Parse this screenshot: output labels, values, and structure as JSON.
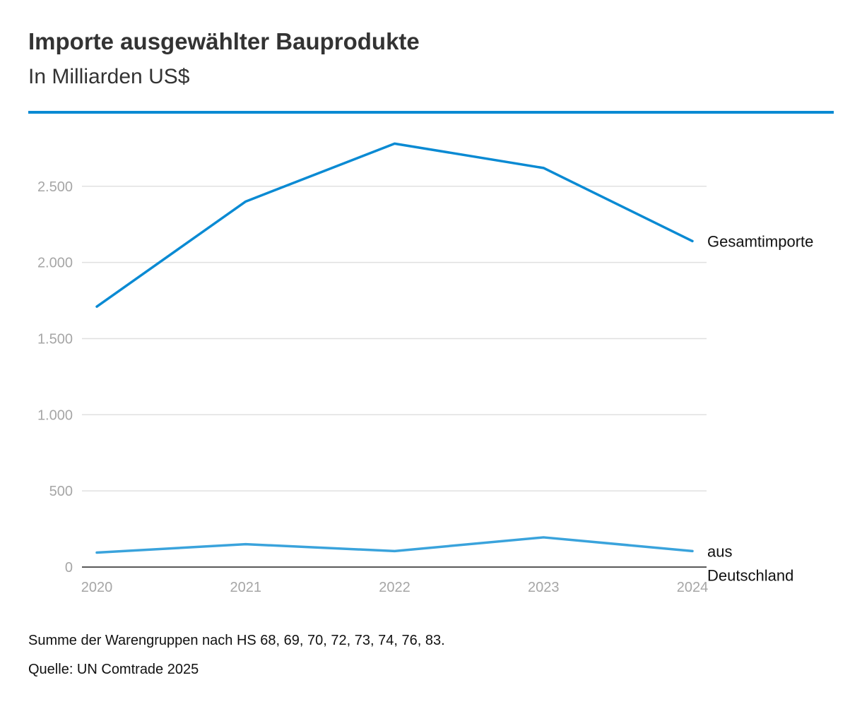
{
  "header": {
    "title": "Importe ausgewählter Bauprodukte",
    "subtitle": "In Milliarden US$"
  },
  "colors": {
    "accent": "#0a8ad3",
    "series_total": "#0a8ad3",
    "series_de": "#3aa3dc",
    "grid": "#e0e0e0",
    "tick": "#a6a6a6"
  },
  "chart_data": {
    "type": "line",
    "title": "Importe ausgewählter Bauprodukte",
    "subtitle": "In Milliarden US$",
    "xlabel": "",
    "ylabel": "",
    "x": [
      "2020",
      "2021",
      "2022",
      "2023",
      "2024"
    ],
    "ylim": [
      0,
      2800
    ],
    "yticks": [
      0,
      500,
      1000,
      1500,
      2000,
      2500
    ],
    "ytick_labels": [
      "0",
      "500",
      "1.000",
      "1.500",
      "2.000",
      "2.500"
    ],
    "grid": true,
    "series": [
      {
        "name": "Gesamtimporte",
        "label_lines": [
          "Gesamtimporte"
        ],
        "values": [
          1710,
          2400,
          2780,
          2620,
          2140
        ]
      },
      {
        "name": "aus Deutschland",
        "label_lines": [
          "aus",
          "Deutschland"
        ],
        "values": [
          95,
          150,
          105,
          195,
          105
        ]
      }
    ]
  },
  "footer": {
    "note": "Summe der Warengruppen nach HS 68, 69, 70, 72, 73, 74, 76, 83.",
    "source": "Quelle: UN Comtrade 2025"
  }
}
